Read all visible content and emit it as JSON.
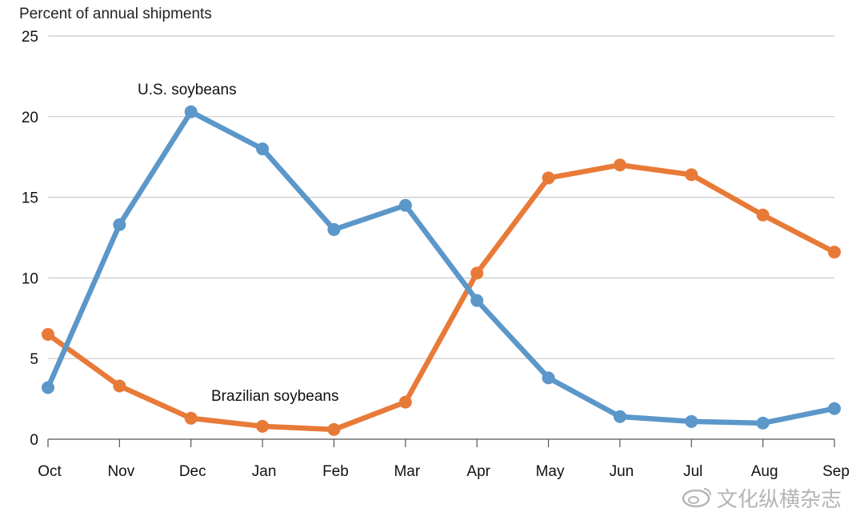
{
  "chart_data": {
    "type": "line",
    "title": "",
    "ylabel": "Percent of annual shipments",
    "xlabel": "",
    "categories": [
      "Oct",
      "Nov",
      "Dec",
      "Jan",
      "Feb",
      "Mar",
      "Apr",
      "May",
      "Jun",
      "Jul",
      "Aug",
      "Sep"
    ],
    "yticks": [
      0,
      5,
      10,
      15,
      20,
      25
    ],
    "ylim": [
      0,
      25
    ],
    "grid": true,
    "series": [
      {
        "name": "U.S. soybeans",
        "label": "U.S. soybeans",
        "color": "#5b97c9",
        "values": [
          3.2,
          13.3,
          20.3,
          18.0,
          13.0,
          14.5,
          8.6,
          3.8,
          1.4,
          1.1,
          1.0,
          1.9
        ]
      },
      {
        "name": "Brazilian soybeans",
        "label": "Brazilian soybeans",
        "color": "#e87a38",
        "values": [
          6.5,
          3.3,
          1.3,
          0.8,
          0.6,
          2.3,
          10.3,
          16.2,
          17.0,
          16.4,
          13.9,
          11.6
        ]
      }
    ]
  },
  "watermark": {
    "text": "文化纵横杂志",
    "icon": "weibo-icon"
  }
}
